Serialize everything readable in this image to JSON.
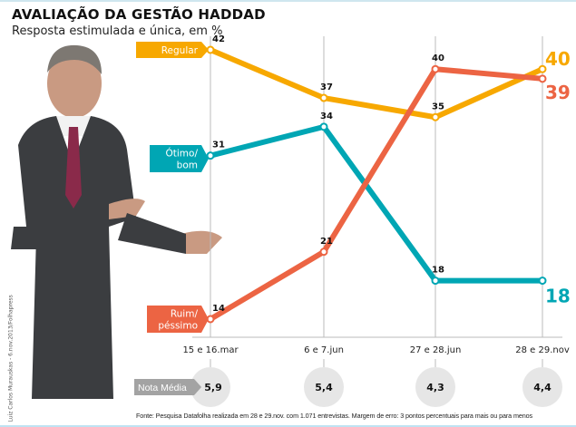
{
  "title": "AVALIAÇÃO DA GESTÃO HADDAD",
  "subtitle": "Resposta estimulada e única, em %",
  "source": "Fonte: Pesquisa Datafolha realizada em 28 e 29.nov. com 1.071 entrevistas. Margem de erro: 3 pontos percentuais para mais ou para menos",
  "credit": "Luiz Carlos Murauskas - 6.nov.2013/Folhapress",
  "chart_data": {
    "type": "line",
    "categories": [
      "15 e 16.mar",
      "6 e 7.jun",
      "27 e 28.jun",
      "28 e 29.nov"
    ],
    "ylim": [
      14,
      42
    ],
    "series": [
      {
        "name": "Regular",
        "label_lines": [
          "Regular"
        ],
        "color": "#f7a800",
        "values": [
          42,
          37,
          35,
          40
        ]
      },
      {
        "name": "Ótimo/bom",
        "label_lines": [
          "Ótimo/",
          "bom"
        ],
        "color": "#00a6b4",
        "values": [
          31,
          34,
          18,
          18
        ]
      },
      {
        "name": "Ruim/péssimo",
        "label_lines": [
          "Ruim/",
          "péssimo"
        ],
        "color": "#ec6443",
        "values": [
          14,
          21,
          40,
          39
        ]
      }
    ],
    "nota_media": {
      "label": "Nota Média",
      "values": [
        "5,9",
        "5,4",
        "4,3",
        "4,4"
      ]
    }
  }
}
